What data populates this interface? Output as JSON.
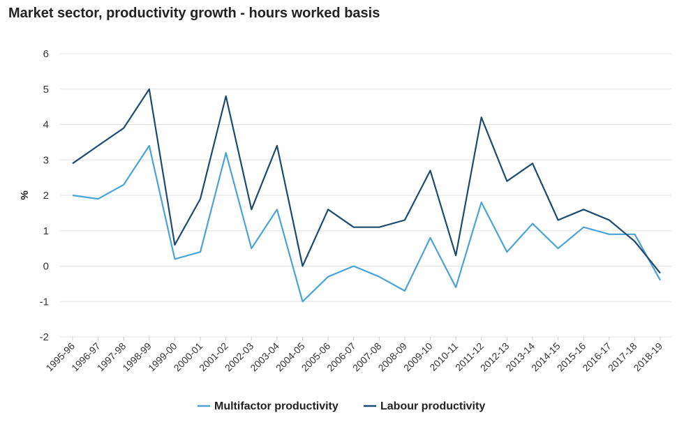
{
  "chart_data": {
    "type": "line",
    "title": "Market sector, productivity growth - hours worked basis",
    "xlabel": "",
    "ylabel": "%",
    "ylim": [
      -2,
      6
    ],
    "yticks": [
      -2,
      -1,
      0,
      1,
      2,
      3,
      4,
      5,
      6
    ],
    "grid": true,
    "legend_position": "bottom",
    "categories": [
      "1995-96",
      "1996-97",
      "1997-98",
      "1998-99",
      "1999-00",
      "2000-01",
      "2001-02",
      "2002-03",
      "2003-04",
      "2004-05",
      "2005-06",
      "2006-07",
      "2007-08",
      "2008-09",
      "2009-10",
      "2010-11",
      "2011-12",
      "2012-13",
      "2013-14",
      "2014-15",
      "2015-16",
      "2016-17",
      "2017-18",
      "2018-19"
    ],
    "series": [
      {
        "name": "Multifactor productivity",
        "color": "#4aa3d6",
        "values": [
          2.0,
          1.9,
          2.3,
          3.4,
          0.2,
          0.4,
          3.2,
          0.5,
          1.6,
          -1.0,
          -0.3,
          0.0,
          -0.3,
          -0.7,
          0.8,
          -0.6,
          1.8,
          0.4,
          1.2,
          0.5,
          1.1,
          0.9,
          0.9,
          -0.4
        ]
      },
      {
        "name": "Labour productivity",
        "color": "#1d4a6e",
        "values": [
          2.9,
          3.4,
          3.9,
          5.0,
          0.6,
          1.9,
          4.8,
          1.6,
          3.4,
          0.0,
          1.6,
          1.1,
          1.1,
          1.3,
          2.7,
          0.3,
          4.2,
          2.4,
          2.9,
          1.3,
          1.6,
          1.3,
          0.7,
          -0.2
        ]
      }
    ]
  }
}
